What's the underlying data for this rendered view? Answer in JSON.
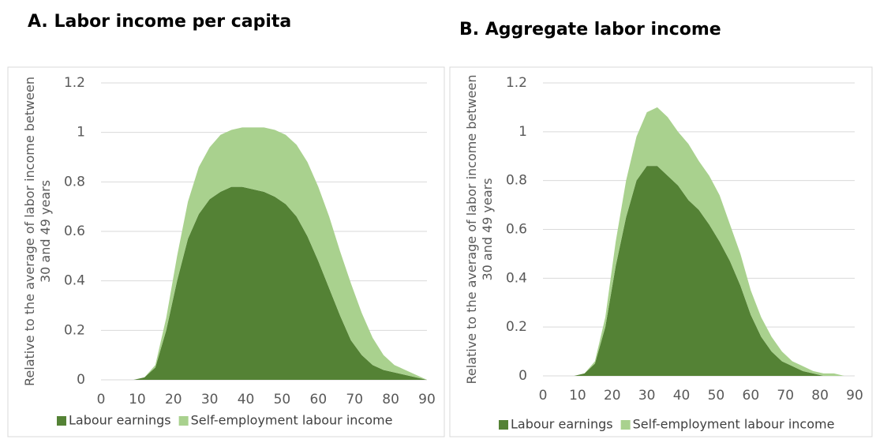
{
  "chart_data": [
    {
      "type": "area",
      "stacked": true,
      "title": "A. Labor income per capita",
      "y_label": "Relative to the average of labor income between 30 and 49 years",
      "x": [
        0,
        3,
        6,
        9,
        12,
        15,
        18,
        21,
        24,
        27,
        30,
        33,
        36,
        39,
        42,
        45,
        48,
        51,
        54,
        57,
        60,
        63,
        66,
        69,
        72,
        75,
        78,
        81,
        84,
        87,
        90
      ],
      "series": [
        {
          "name": "Labour earnings",
          "color": "#548235",
          "values": [
            0,
            0,
            0,
            0,
            0.01,
            0.05,
            0.2,
            0.4,
            0.57,
            0.67,
            0.73,
            0.76,
            0.78,
            0.78,
            0.77,
            0.76,
            0.74,
            0.71,
            0.66,
            0.58,
            0.48,
            0.37,
            0.26,
            0.16,
            0.1,
            0.06,
            0.04,
            0.03,
            0.02,
            0.01,
            0
          ]
        },
        {
          "name": "Self-employment labour income",
          "color": "#a9d18e",
          "values": [
            0,
            0,
            0,
            0,
            0,
            0.01,
            0.05,
            0.1,
            0.15,
            0.19,
            0.21,
            0.23,
            0.23,
            0.24,
            0.25,
            0.26,
            0.27,
            0.28,
            0.29,
            0.3,
            0.3,
            0.29,
            0.26,
            0.23,
            0.17,
            0.11,
            0.06,
            0.03,
            0.02,
            0.01,
            0
          ]
        }
      ],
      "xlim": [
        0,
        90
      ],
      "xticks": [
        0,
        10,
        20,
        30,
        40,
        50,
        60,
        70,
        80,
        90
      ],
      "ylim": [
        0,
        1.2
      ],
      "yticks": [
        0,
        0.2,
        0.4,
        0.6,
        0.8,
        1,
        1.2
      ],
      "grid": true,
      "legend": "bottom"
    },
    {
      "type": "area",
      "stacked": true,
      "title": "B. Aggregate labor income",
      "y_label": "Relative to the average of labor income between 30 and 49 years",
      "x": [
        0,
        3,
        6,
        9,
        12,
        15,
        18,
        21,
        24,
        27,
        30,
        33,
        36,
        39,
        42,
        45,
        48,
        51,
        54,
        57,
        60,
        63,
        66,
        69,
        72,
        75,
        78,
        81,
        84,
        87,
        90
      ],
      "series": [
        {
          "name": "Labour earnings",
          "color": "#548235",
          "values": [
            0,
            0,
            0,
            0,
            0.01,
            0.05,
            0.2,
            0.45,
            0.65,
            0.8,
            0.86,
            0.86,
            0.82,
            0.78,
            0.72,
            0.68,
            0.62,
            0.55,
            0.47,
            0.37,
            0.25,
            0.16,
            0.1,
            0.06,
            0.04,
            0.02,
            0.01,
            0,
            0,
            0,
            0
          ]
        },
        {
          "name": "Self-employment labour income",
          "color": "#a9d18e",
          "values": [
            0,
            0,
            0,
            0,
            0,
            0.01,
            0.04,
            0.1,
            0.15,
            0.18,
            0.22,
            0.24,
            0.24,
            0.22,
            0.23,
            0.2,
            0.2,
            0.19,
            0.15,
            0.13,
            0.1,
            0.08,
            0.06,
            0.04,
            0.02,
            0.02,
            0.01,
            0.01,
            0.01,
            0,
            0
          ]
        }
      ],
      "xlim": [
        0,
        90
      ],
      "xticks": [
        0,
        10,
        20,
        30,
        40,
        50,
        60,
        70,
        80,
        90
      ],
      "ylim": [
        0,
        1.2
      ],
      "yticks": [
        0,
        0.2,
        0.4,
        0.6,
        0.8,
        1,
        1.2
      ],
      "grid": true,
      "legend": "bottom"
    }
  ]
}
